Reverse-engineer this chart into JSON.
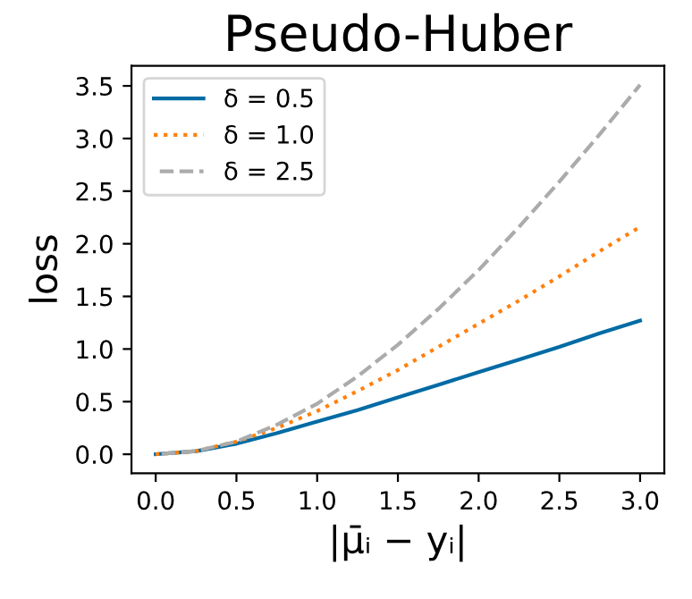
{
  "chart_data": {
    "type": "line",
    "title": "Pseudo-Huber",
    "xlabel": "|μ̄ᵢ − yᵢ|",
    "ylabel": "loss",
    "x": [
      0,
      0.25,
      0.5,
      0.75,
      1,
      1.25,
      1.5,
      1.75,
      2,
      2.25,
      2.5,
      2.75,
      3
    ],
    "series": [
      {
        "name": "δ = 0.5",
        "color": "#006ba4",
        "line_style": "solid",
        "values": [
          0,
          0.03,
          0.1,
          0.2,
          0.31,
          0.42,
          0.54,
          0.66,
          0.78,
          0.9,
          1.02,
          1.15,
          1.27
        ]
      },
      {
        "name": "δ = 1.0",
        "color": "#ff800e",
        "line_style": "dotted",
        "values": [
          0,
          0.03,
          0.12,
          0.25,
          0.41,
          0.6,
          0.8,
          1.02,
          1.24,
          1.46,
          1.69,
          1.93,
          2.16
        ]
      },
      {
        "name": "δ = 2.5",
        "color": "#ababab",
        "line_style": "dashed",
        "values": [
          0,
          0.03,
          0.12,
          0.28,
          0.48,
          0.74,
          1.04,
          1.38,
          1.75,
          2.16,
          2.59,
          3.04,
          3.51
        ]
      }
    ],
    "xlim": [
      -0.15,
      3.15
    ],
    "ylim": [
      -0.18,
      3.69
    ],
    "xticks": [
      {
        "value": 0,
        "label": "0.0"
      },
      0.5,
      {
        "value": 1,
        "label": "1.0"
      },
      1.5,
      {
        "value": 2,
        "label": "2.0"
      },
      2.5,
      {
        "value": 3,
        "label": "3.0"
      }
    ],
    "yticks": [
      {
        "value": 0,
        "label": "0.0"
      },
      0.5,
      {
        "value": 1,
        "label": "1.0"
      },
      1.5,
      {
        "value": 2,
        "label": "2.0"
      },
      2.5,
      {
        "value": 3,
        "label": "3.0"
      },
      3.5
    ],
    "grid": false,
    "legend": "top left",
    "marker": "none"
  }
}
